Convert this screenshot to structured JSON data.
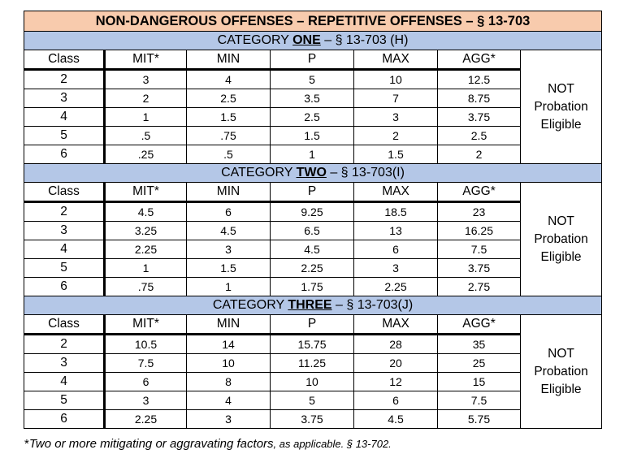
{
  "title": "NON-DANGEROUS OFFENSES – REPETITIVE OFFENSES – § 13-703",
  "header": [
    "Class",
    "MIT*",
    "MIN",
    "P",
    "MAX",
    "AGG*"
  ],
  "side_note": [
    "NOT",
    "Probation",
    "Eligible"
  ],
  "categories": [
    {
      "prefix": "CATEGORY ",
      "name": "ONE",
      "suffix": " – § 13-703 (H)",
      "rows": [
        [
          "2",
          "3",
          "4",
          "5",
          "10",
          "12.5"
        ],
        [
          "3",
          "2",
          "2.5",
          "3.5",
          "7",
          "8.75"
        ],
        [
          "4",
          "1",
          "1.5",
          "2.5",
          "3",
          "3.75"
        ],
        [
          "5",
          ".5",
          ".75",
          "1.5",
          "2",
          "2.5"
        ],
        [
          "6",
          ".25",
          ".5",
          "1",
          "1.5",
          "2"
        ]
      ]
    },
    {
      "prefix": "CATEGORY ",
      "name": "TWO",
      "suffix": " – § 13-703(I)",
      "rows": [
        [
          "2",
          "4.5",
          "6",
          "9.25",
          "18.5",
          "23"
        ],
        [
          "3",
          "3.25",
          "4.5",
          "6.5",
          "13",
          "16.25"
        ],
        [
          "4",
          "2.25",
          "3",
          "4.5",
          "6",
          "7.5"
        ],
        [
          "5",
          "1",
          "1.5",
          "2.25",
          "3",
          "3.75"
        ],
        [
          "6",
          ".75",
          "1",
          "1.75",
          "2.25",
          "2.75"
        ]
      ]
    },
    {
      "prefix": "CATEGORY ",
      "name": "THREE",
      "suffix": " – § 13-703(J)",
      "rows": [
        [
          "2",
          "10.5",
          "14",
          "15.75",
          "28",
          "35"
        ],
        [
          "3",
          "7.5",
          "10",
          "11.25",
          "20",
          "25"
        ],
        [
          "4",
          "6",
          "8",
          "10",
          "12",
          "15"
        ],
        [
          "5",
          "3",
          "4",
          "5",
          "6",
          "7.5"
        ],
        [
          "6",
          "2.25",
          "3",
          "3.75",
          "4.5",
          "5.75"
        ]
      ]
    }
  ],
  "footnote": {
    "mark": "*",
    "main": "Two or more mitigating or aggravating factors",
    "tail": ", as applicable. § 13-702."
  }
}
